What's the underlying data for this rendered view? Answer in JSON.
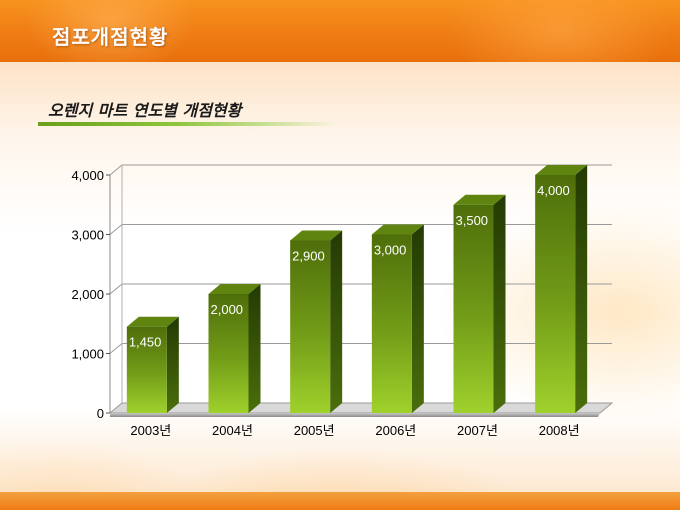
{
  "header": {
    "title": "점포개점현황"
  },
  "subtitle": "오렌지 마트 연도별 개점현황",
  "chart_data": {
    "type": "bar",
    "categories": [
      "2003년",
      "2004년",
      "2005년",
      "2006년",
      "2007년",
      "2008년"
    ],
    "values": [
      1450,
      2000,
      2900,
      3000,
      3500,
      4000
    ],
    "value_labels": [
      "1,450",
      "2,000",
      "2,900",
      "3,000",
      "3,500",
      "4,000"
    ],
    "yticks": [
      0,
      1000,
      2000,
      3000,
      4000
    ],
    "ytick_labels": [
      "0",
      "1,000",
      "2,000",
      "3,000",
      "4,000"
    ],
    "ylim": [
      0,
      4000
    ],
    "grid": true,
    "bar_style": "3d",
    "colors": {
      "bar_top": "#4e6e0a",
      "bar_bottom": "#9fd12c",
      "bar_side": "#2f4a05",
      "floor": "#9a9a9a"
    }
  }
}
